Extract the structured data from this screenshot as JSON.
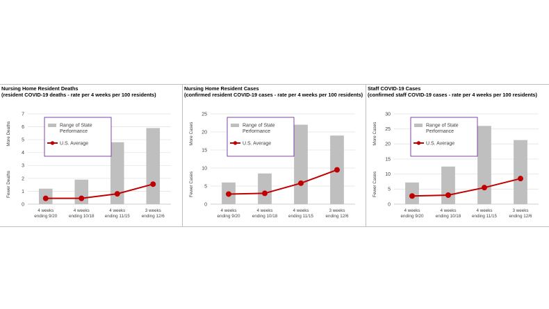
{
  "chart_data": [
    {
      "type": "bar+line",
      "title": "Nursing Home Resident Deaths",
      "subtitle": "(resident COVID-19 deaths - rate per 4 weeks per 100 residents)",
      "ylabel_top": "More Deaths",
      "ylabel_bottom": "Fewer Deaths",
      "categories": [
        [
          "4 weeks",
          "ending 9/20"
        ],
        [
          "4 weeks",
          "ending 10/18"
        ],
        [
          "4 weeks",
          "ending 11/15"
        ],
        [
          "3 weeks",
          "ending 12/6"
        ]
      ],
      "ylim": [
        0,
        7
      ],
      "yticks": [
        0,
        1,
        2,
        3,
        4,
        5,
        6,
        7
      ],
      "series": [
        {
          "name": "Range of State Performance",
          "type": "bar",
          "color": "#bfbfbf",
          "values": [
            1.2,
            1.9,
            4.8,
            5.9
          ]
        },
        {
          "name": "U.S. Average",
          "type": "line",
          "color": "#c00000",
          "values": [
            0.45,
            0.45,
            0.8,
            1.55
          ]
        }
      ],
      "grid": true,
      "legend": "inside-top-left"
    },
    {
      "type": "bar+line",
      "title": "Nursing Home Resident Cases",
      "subtitle": "(confirmed resident COVID-19 cases - rate per 4 weeks per 100 residents)",
      "ylabel_top": "More Cases",
      "ylabel_bottom": "Fewer Cases",
      "categories": [
        [
          "4 weeks",
          "ending 9/20"
        ],
        [
          "4 weeks",
          "ending 10/18"
        ],
        [
          "4 weeks",
          "ending 11/15"
        ],
        [
          "3 weeks",
          "ending 12/6"
        ]
      ],
      "ylim": [
        0,
        25
      ],
      "yticks": [
        0,
        5,
        10,
        15,
        20,
        25
      ],
      "series": [
        {
          "name": "Range of State Performance",
          "type": "bar",
          "color": "#bfbfbf",
          "values": [
            6.0,
            8.5,
            22.0,
            19.0
          ]
        },
        {
          "name": "U.S. Average",
          "type": "line",
          "color": "#c00000",
          "values": [
            2.8,
            3.0,
            5.8,
            9.5
          ]
        }
      ],
      "grid": true,
      "legend": "inside-top-left"
    },
    {
      "type": "bar+line",
      "title": "Staff COVID-19 Cases",
      "subtitle": "(confirmed staff COVID-19 cases - rate per 4 weeks per 100 residents)",
      "ylabel_top": "More Cases",
      "ylabel_bottom": "Fewer Cases",
      "categories": [
        [
          "4 weeks",
          "ending 9/20"
        ],
        [
          "4 weeks",
          "ending 10/18"
        ],
        [
          "4 weeks",
          "ending 11/15"
        ],
        [
          "3 weeks",
          "ending 12/6"
        ]
      ],
      "ylim": [
        0,
        30
      ],
      "yticks": [
        0,
        5,
        10,
        15,
        20,
        25,
        30
      ],
      "series": [
        {
          "name": "Range of State Performance",
          "type": "bar",
          "color": "#bfbfbf",
          "values": [
            7.2,
            12.5,
            26.0,
            21.3
          ]
        },
        {
          "name": "U.S. Average",
          "type": "line",
          "color": "#c00000",
          "values": [
            2.7,
            3.0,
            5.5,
            8.5
          ]
        }
      ],
      "grid": true,
      "legend": "inside-top-left"
    }
  ]
}
